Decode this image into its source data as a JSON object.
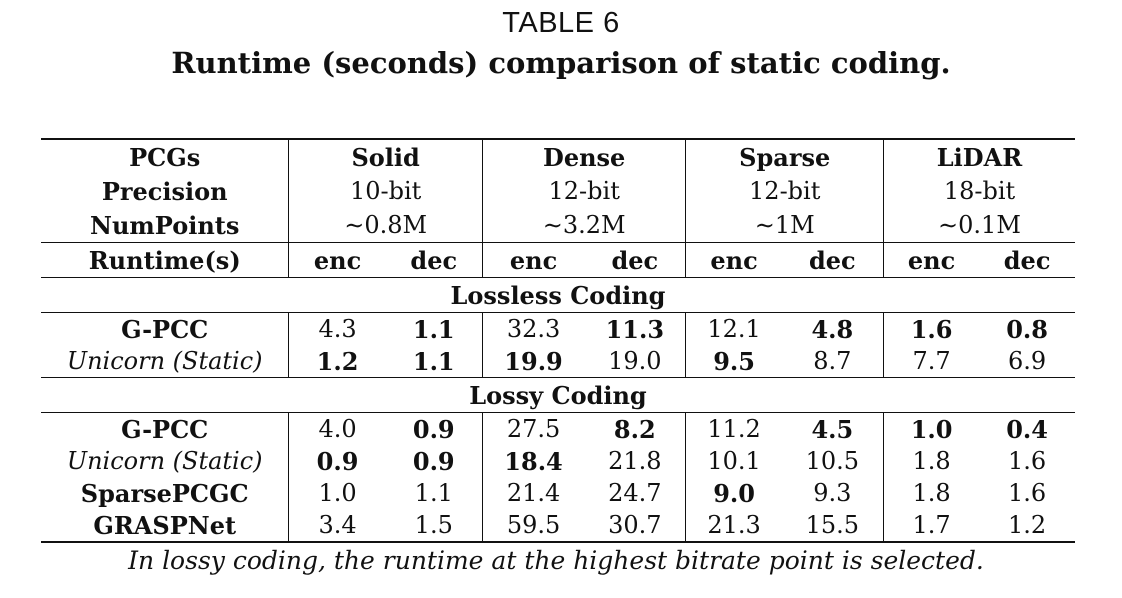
{
  "caption": {
    "label": "TABLE 6",
    "title": "Runtime (seconds) comparison of static coding."
  },
  "header": {
    "pcgs_label": "PCGs",
    "precision_label": "Precision",
    "numpoints_label": "NumPoints",
    "runtime_label": "Runtime(s)",
    "enc": "enc",
    "dec": "dec",
    "datasets": [
      {
        "name": "Solid",
        "precision": "10-bit",
        "numpoints": "∼0.8M"
      },
      {
        "name": "Dense",
        "precision": "12-bit",
        "numpoints": "∼3.2M"
      },
      {
        "name": "Sparse",
        "precision": "12-bit",
        "numpoints": "∼1M"
      },
      {
        "name": "LiDAR",
        "precision": "18-bit",
        "numpoints": "∼0.1M"
      }
    ]
  },
  "lossless": {
    "title": "Lossless Coding",
    "rows": [
      {
        "method": "G-PCC",
        "values": [
          "4.3",
          "1.1",
          "32.3",
          "11.3",
          "12.1",
          "4.8",
          "1.6",
          "0.8"
        ]
      },
      {
        "method": "Unicorn (Static)",
        "values": [
          "1.2",
          "1.1",
          "19.9",
          "19.0",
          "9.5",
          "8.7",
          "7.7",
          "6.9"
        ]
      }
    ]
  },
  "lossy": {
    "title": "Lossy Coding",
    "rows": [
      {
        "method": "G-PCC",
        "values": [
          "4.0",
          "0.9",
          "27.5",
          "8.2",
          "11.2",
          "4.5",
          "1.0",
          "0.4"
        ]
      },
      {
        "method": "Unicorn (Static)",
        "values": [
          "0.9",
          "0.9",
          "18.4",
          "21.8",
          "10.1",
          "10.5",
          "1.8",
          "1.6"
        ]
      },
      {
        "method": "SparsePCGC",
        "values": [
          "1.0",
          "1.1",
          "21.4",
          "24.7",
          "9.0",
          "9.3",
          "1.8",
          "1.6"
        ]
      },
      {
        "method": "GRASPNet",
        "values": [
          "3.4",
          "1.5",
          "59.5",
          "30.7",
          "21.3",
          "15.5",
          "1.7",
          "1.2"
        ]
      }
    ]
  },
  "footnote": "In lossy coding, the runtime at the highest bitrate point is selected."
}
